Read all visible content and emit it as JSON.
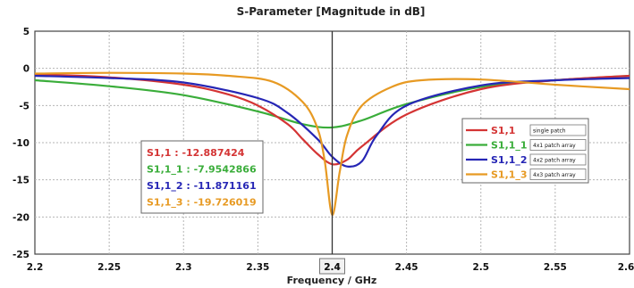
{
  "chart_data": {
    "type": "line",
    "title": "S-Parameter [Magnitude in dB]",
    "xlabel": "Frequency / GHz",
    "ylabel": "",
    "xlim": [
      2.2,
      2.6
    ],
    "ylim": [
      -25,
      5
    ],
    "x_ticks": [
      "2.2",
      "2.25",
      "2.3",
      "2.35",
      "2.4",
      "2.45",
      "2.5",
      "2.55",
      "2.6"
    ],
    "x_tick_values": [
      2.2,
      2.25,
      2.3,
      2.35,
      2.4,
      2.45,
      2.5,
      2.55,
      2.6
    ],
    "y_ticks": [
      "5",
      "0",
      "-5",
      "-10",
      "-15",
      "-20",
      "-25"
    ],
    "y_tick_values": [
      5,
      0,
      -5,
      -10,
      -15,
      -20,
      -25
    ],
    "grid": true,
    "marker_x": 2.4,
    "marker_label": "2.4",
    "legend_position": "right",
    "series": [
      {
        "name": "S1,1",
        "description": "single patch",
        "color": "#d43434",
        "readout": "S1,1 : -12.887424",
        "x": [
          2.2,
          2.25,
          2.3,
          2.33,
          2.35,
          2.37,
          2.38,
          2.39,
          2.4,
          2.41,
          2.42,
          2.45,
          2.5,
          2.55,
          2.6
        ],
        "y": [
          -0.8,
          -1.2,
          -2.2,
          -3.5,
          -5.0,
          -7.5,
          -9.5,
          -11.5,
          -12.9,
          -12.3,
          -10.5,
          -6.2,
          -2.8,
          -1.6,
          -1.0
        ]
      },
      {
        "name": "S1,1_1",
        "description": "4x1 patch array",
        "color": "#3aad3a",
        "readout": "S1,1_1 : -7.9542866",
        "x": [
          2.2,
          2.25,
          2.3,
          2.35,
          2.38,
          2.4,
          2.42,
          2.45,
          2.5,
          2.55,
          2.6
        ],
        "y": [
          -1.6,
          -2.4,
          -3.6,
          -5.8,
          -7.5,
          -7.95,
          -7.0,
          -4.8,
          -2.5,
          -1.6,
          -1.0
        ]
      },
      {
        "name": "S1,1_2",
        "description": "4x2 patch array",
        "color": "#2626b5",
        "readout": "S1,1_2 : -11.871161",
        "x": [
          2.2,
          2.25,
          2.3,
          2.35,
          2.37,
          2.39,
          2.4,
          2.41,
          2.42,
          2.43,
          2.45,
          2.5,
          2.55,
          2.6
        ],
        "y": [
          -1.0,
          -1.3,
          -1.9,
          -4.0,
          -6.0,
          -9.5,
          -11.9,
          -13.2,
          -12.5,
          -9.0,
          -5.0,
          -2.3,
          -1.6,
          -1.3
        ]
      },
      {
        "name": "S1,1_3",
        "description": "4x3 patch array",
        "color": "#e79a23",
        "readout": "S1,1_3 : -19.726019",
        "x": [
          2.2,
          2.25,
          2.3,
          2.33,
          2.36,
          2.38,
          2.39,
          2.395,
          2.4,
          2.405,
          2.41,
          2.42,
          2.44,
          2.46,
          2.5,
          2.55,
          2.6
        ],
        "y": [
          -0.7,
          -0.6,
          -0.7,
          -1.0,
          -1.8,
          -4.5,
          -8.0,
          -12.5,
          -19.7,
          -14.0,
          -9.0,
          -5.0,
          -2.5,
          -1.6,
          -1.5,
          -2.2,
          -2.8
        ]
      }
    ]
  }
}
